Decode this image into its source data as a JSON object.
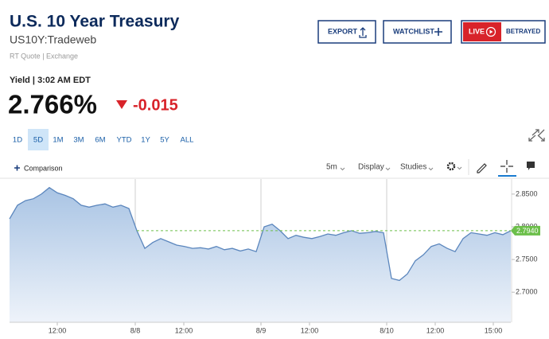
{
  "header": {
    "title": "U.S. 10 Year Treasury",
    "symbol": "US10Y:Tradeweb",
    "source": "RT Quote | Exchange"
  },
  "buttons": {
    "export": "EXPORT",
    "watchlist": "WATCHLIST",
    "live": "LIVE",
    "betrayed": "BETRAYED"
  },
  "quote": {
    "label": "Yield | 3:02 AM EDT",
    "price": "2.766%",
    "change": "-0.015"
  },
  "ranges": [
    "1D",
    "5D",
    "1M",
    "3M",
    "6M",
    "YTD",
    "1Y",
    "5Y",
    "ALL"
  ],
  "selected_range": 1,
  "toolbar": {
    "comparison": "Comparison",
    "interval": "5m",
    "display": "Display",
    "studies": "Studies"
  },
  "chart_data": {
    "type": "area",
    "color": "#5b86bd",
    "values": [
      2.812,
      2.833,
      2.84,
      2.843,
      2.85,
      2.86,
      2.852,
      2.848,
      2.843,
      2.833,
      2.83,
      2.833,
      2.835,
      2.83,
      2.833,
      2.828,
      2.794,
      2.767,
      2.776,
      2.782,
      2.777,
      2.772,
      2.77,
      2.767,
      2.768,
      2.766,
      2.77,
      2.765,
      2.767,
      2.763,
      2.766,
      2.762,
      2.8,
      2.804,
      2.794,
      2.782,
      2.787,
      2.784,
      2.782,
      2.785,
      2.789,
      2.787,
      2.791,
      2.794,
      2.79,
      2.791,
      2.793,
      2.791,
      2.721,
      2.718,
      2.728,
      2.748,
      2.757,
      2.77,
      2.774,
      2.767,
      2.762,
      2.782,
      2.791,
      2.789,
      2.787,
      2.791,
      2.788,
      2.794
    ],
    "xlim": [
      0,
      63
    ],
    "xticks": [
      {
        "value": 6,
        "label": "12:00"
      },
      {
        "value": 15.8,
        "label": "8/8"
      },
      {
        "value": 21.9,
        "label": "12:00"
      },
      {
        "value": 31.6,
        "label": "8/9"
      },
      {
        "value": 37.7,
        "label": "12:00"
      },
      {
        "value": 47.4,
        "label": "8/10"
      },
      {
        "value": 53.5,
        "label": "12:00"
      },
      {
        "value": 60.8,
        "label": "15:00"
      }
    ],
    "ylim": [
      2.654,
      2.873
    ],
    "yticks": [
      {
        "value": 2.85,
        "label": "2.8500"
      },
      {
        "value": 2.8,
        "label": "2.8000"
      },
      {
        "value": 2.75,
        "label": "2.7500"
      },
      {
        "value": 2.7,
        "label": "2.7000"
      }
    ],
    "last_price": {
      "value": 2.794,
      "label": "2.7940",
      "color": "#6cbf4a"
    }
  }
}
